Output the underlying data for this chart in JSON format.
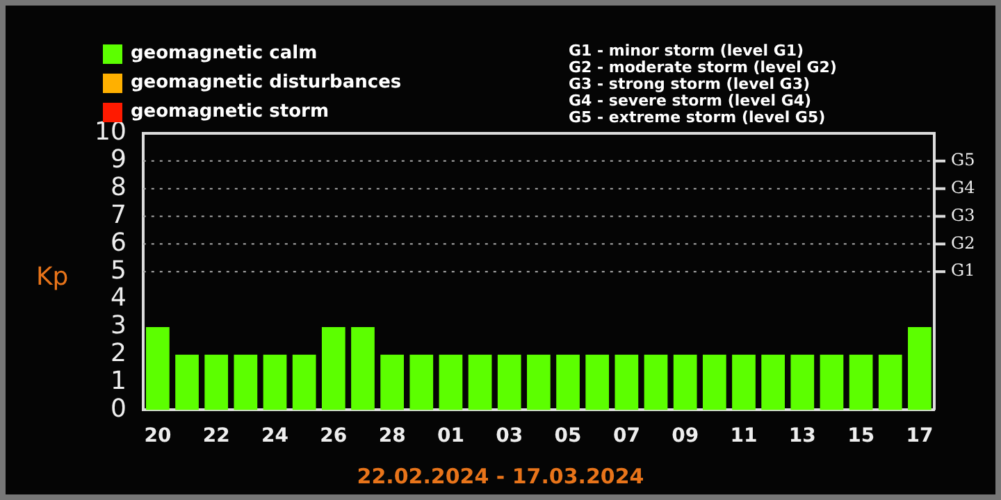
{
  "chart_data": {
    "type": "bar",
    "xlabel": "22.02.2024 - 17.03.2024",
    "ylabel": "Kp",
    "categories": [
      "20",
      null,
      "22",
      null,
      "24",
      null,
      "26",
      null,
      "28",
      null,
      "01",
      null,
      "03",
      null,
      "05",
      null,
      "07",
      null,
      "09",
      null,
      "11",
      null,
      "13",
      null,
      "15",
      null,
      "17"
    ],
    "series": [
      {
        "name": "geomagnetic calm",
        "color": "#5cff00",
        "values": [
          3,
          2,
          2,
          2,
          2,
          2,
          3,
          3,
          2,
          2,
          2,
          2,
          2,
          2,
          2,
          2,
          2,
          2,
          2,
          2,
          2,
          2,
          2,
          2,
          2,
          2,
          3
        ]
      },
      {
        "name": "geomagnetic disturbances",
        "color": "#ffb000",
        "values": [
          null,
          null,
          null,
          null,
          null,
          null,
          null,
          null,
          null,
          null,
          null,
          null,
          null,
          null,
          null,
          null,
          null,
          null,
          null,
          null,
          null,
          null,
          null,
          null,
          null,
          null,
          null
        ]
      },
      {
        "name": "geomagnetic storm",
        "color": "#ff1a00",
        "values": [
          null,
          null,
          null,
          null,
          null,
          null,
          null,
          null,
          null,
          null,
          null,
          null,
          null,
          null,
          null,
          null,
          null,
          null,
          null,
          null,
          null,
          null,
          null,
          null,
          null,
          null,
          null
        ]
      }
    ],
    "stacked": true,
    "ylim": [
      0,
      10
    ],
    "yticks": [
      0,
      1,
      2,
      3,
      4,
      5,
      6,
      7,
      8,
      9,
      10
    ],
    "ref_lines": [
      {
        "axis": "y",
        "value": 5,
        "label": "G1",
        "line_style": "dotted"
      },
      {
        "axis": "y",
        "value": 6,
        "label": "G2",
        "line_style": "dotted"
      },
      {
        "axis": "y",
        "value": 7,
        "label": "G3",
        "line_style": "dotted"
      },
      {
        "axis": "y",
        "value": 8,
        "label": "G4",
        "line_style": "dotted"
      },
      {
        "axis": "y",
        "value": 9,
        "label": "G5",
        "line_style": "dotted"
      }
    ],
    "legend": "top left",
    "annotations": [
      "G1 - minor storm (level G1)",
      "G2 - moderate storm (level G2)",
      "G3 - strong storm (level G3)",
      "G4 - severe storm (level G4)",
      "G5 - extreme storm (level G5)"
    ]
  }
}
